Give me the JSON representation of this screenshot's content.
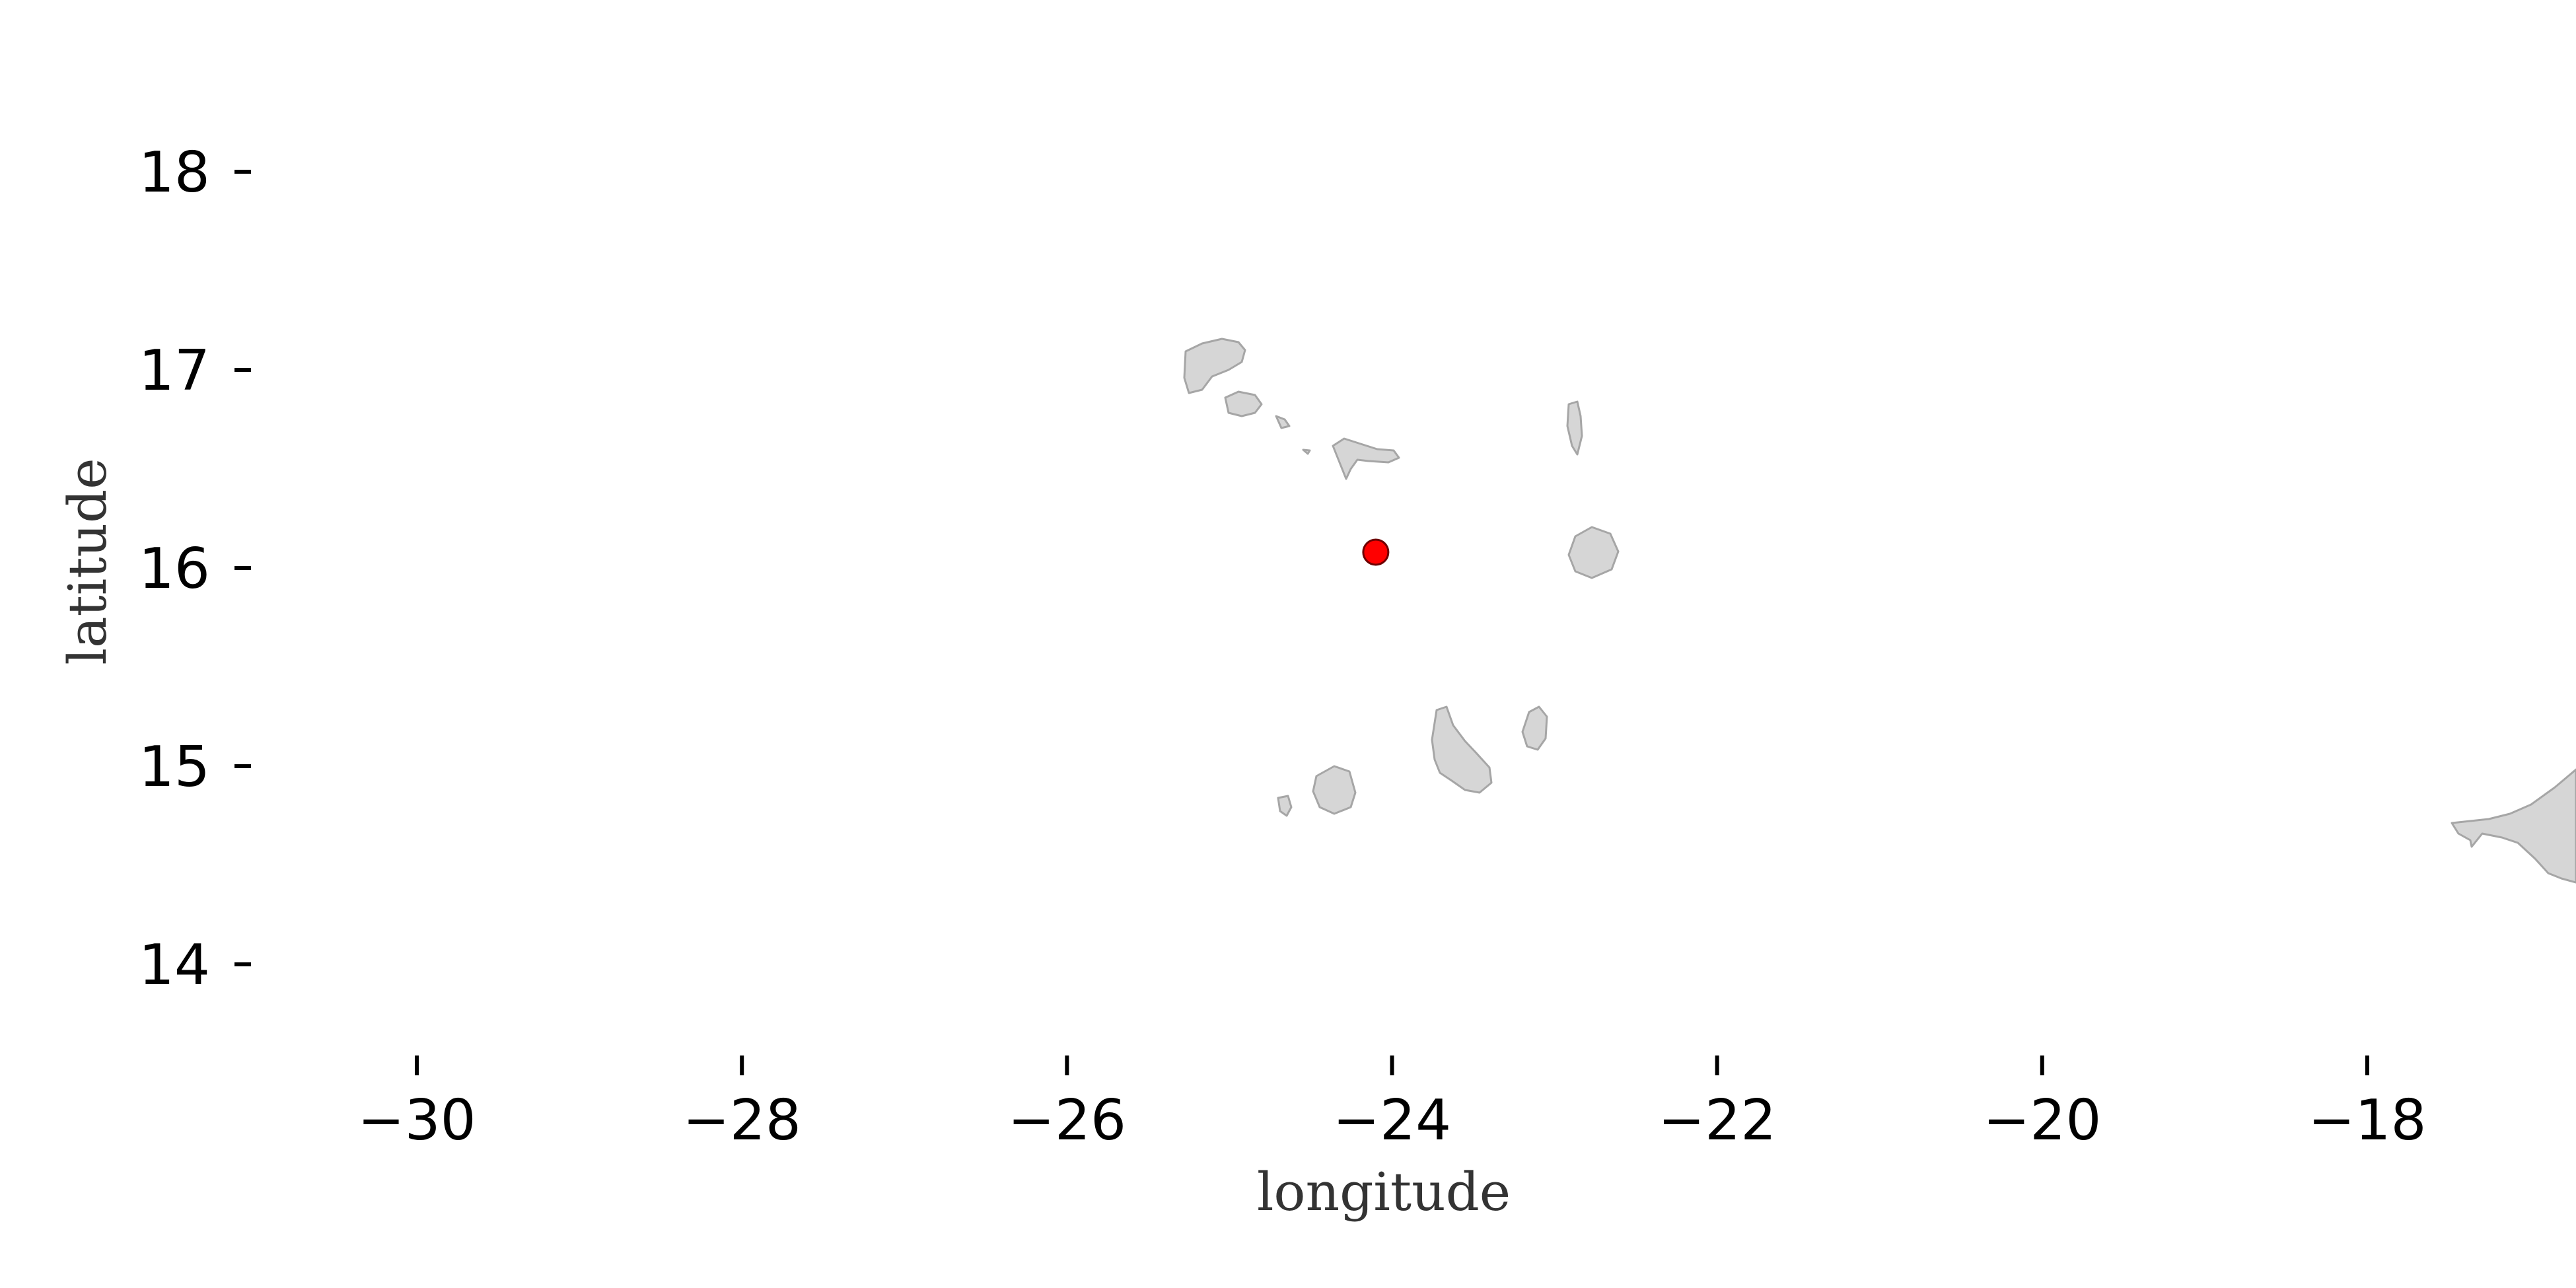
{
  "map": {
    "xlabel": "longitude",
    "ylabel": "latitude",
    "xlim": [
      -31.0,
      -17.0
    ],
    "ylim": [
      13.6,
      18.6
    ],
    "x_ticks": [
      -30,
      -28,
      -26,
      -24,
      -22,
      -20,
      -18
    ],
    "y_ticks": [
      14,
      15,
      16,
      17,
      18
    ],
    "x_tick_labels": [
      "−30",
      "−28",
      "−26",
      "−24",
      "−22",
      "−20",
      "−18"
    ],
    "y_tick_labels": [
      "14",
      "15",
      "16",
      "17",
      "18"
    ],
    "land_color": "#d6d6d6",
    "land_edge_color": "#a6a6a6",
    "point": {
      "lon": -24.1,
      "lat": 16.08,
      "color": "#ff0000"
    }
  }
}
